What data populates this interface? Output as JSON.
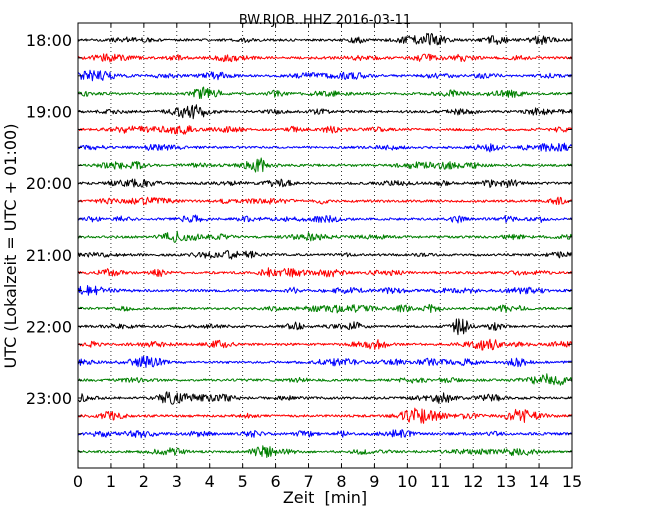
{
  "chart_data": {
    "type": "line",
    "title": "BW.RJOB..HHZ 2016-03-11",
    "xlabel": "Zeit  [min]",
    "ylabel": "UTC (Lokalzeit = UTC + 01:00)",
    "xlim": [
      0,
      15
    ],
    "x_ticks": [
      "0",
      "1",
      "2",
      "3",
      "4",
      "5",
      "6",
      "7",
      "8",
      "9",
      "10",
      "11",
      "12",
      "13",
      "14",
      "15"
    ],
    "y_ticks": [
      "18:00",
      "19:00",
      "20:00",
      "21:00",
      "22:00",
      "23:00"
    ],
    "trace_interval_minutes": 15,
    "trace_colors": [
      "#000000",
      "#ff0000",
      "#0000ff",
      "#008000"
    ],
    "grid": "vertical-dotted",
    "traces": [
      {
        "start": "18:00",
        "color": "#000000"
      },
      {
        "start": "18:15",
        "color": "#ff0000"
      },
      {
        "start": "18:30",
        "color": "#0000ff"
      },
      {
        "start": "18:45",
        "color": "#008000"
      },
      {
        "start": "19:00",
        "color": "#000000"
      },
      {
        "start": "19:15",
        "color": "#ff0000"
      },
      {
        "start": "19:30",
        "color": "#0000ff"
      },
      {
        "start": "19:45",
        "color": "#008000"
      },
      {
        "start": "20:00",
        "color": "#000000"
      },
      {
        "start": "20:15",
        "color": "#ff0000"
      },
      {
        "start": "20:30",
        "color": "#0000ff"
      },
      {
        "start": "20:45",
        "color": "#008000"
      },
      {
        "start": "21:00",
        "color": "#000000"
      },
      {
        "start": "21:15",
        "color": "#ff0000"
      },
      {
        "start": "21:30",
        "color": "#0000ff"
      },
      {
        "start": "21:45",
        "color": "#008000"
      },
      {
        "start": "22:00",
        "color": "#000000"
      },
      {
        "start": "22:15",
        "color": "#ff0000"
      },
      {
        "start": "22:30",
        "color": "#0000ff"
      },
      {
        "start": "22:45",
        "color": "#008000"
      },
      {
        "start": "23:00",
        "color": "#000000"
      },
      {
        "start": "23:15",
        "color": "#ff0000"
      },
      {
        "start": "23:30",
        "color": "#0000ff"
      },
      {
        "start": "23:45",
        "color": "#008000"
      }
    ]
  }
}
